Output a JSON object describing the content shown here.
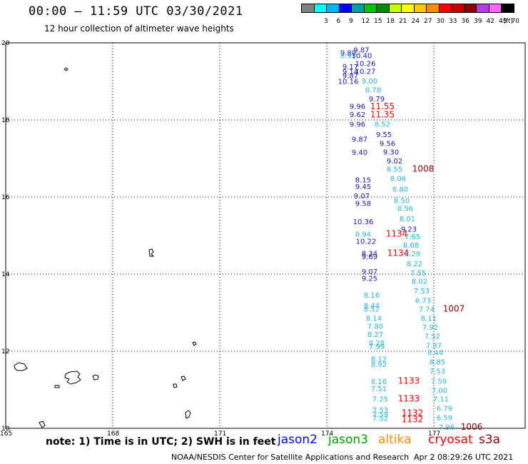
{
  "header": {
    "title": "00:00 – 11:59 UTC 03/30/2021",
    "subtitle": "12 hour collection of altimeter wave heights"
  },
  "legend": {
    "unit": "(ft)",
    "swatches": [
      {
        "label": "",
        "color": "#808080"
      },
      {
        "label": "3",
        "color": "#00ffff"
      },
      {
        "label": "6",
        "color": "#00b4ff"
      },
      {
        "label": "9",
        "color": "#0000ff"
      },
      {
        "label": "12",
        "color": "#00a0a0"
      },
      {
        "label": "15",
        "color": "#00c800"
      },
      {
        "label": "18",
        "color": "#008c00"
      },
      {
        "label": "21",
        "color": "#c8ff00"
      },
      {
        "label": "24",
        "color": "#ffff00"
      },
      {
        "label": "27",
        "color": "#ffc800"
      },
      {
        "label": "30",
        "color": "#ff8c00"
      },
      {
        "label": "33",
        "color": "#ff0000"
      },
      {
        "label": "36",
        "color": "#c80000"
      },
      {
        "label": "39",
        "color": "#8c0000"
      },
      {
        "label": "42",
        "color": "#b43ce6"
      },
      {
        "label": "45",
        "color": "#ff64ff"
      },
      {
        "label": "70",
        "color": "#000000"
      }
    ]
  },
  "map": {
    "lat_labels": [
      "20",
      "18",
      "16",
      "14",
      "12",
      "10"
    ],
    "lon_labels": [
      "165",
      "168",
      "171",
      "174",
      "177"
    ],
    "colors": {
      "navy": "#1a1ab4",
      "sky": "#2ab4dc",
      "red": "#ff0000",
      "maroon": "#8c0000"
    },
    "observations": [
      {
        "text": "9.87",
        "c": "navy",
        "lon": 174.97,
        "lat": 19.82
      },
      {
        "text": "9.80",
        "c": "navy",
        "lon": 174.6,
        "lat": 19.75
      },
      {
        "text": "8.95",
        "c": "sky",
        "lon": 174.6,
        "lat": 19.68
      },
      {
        "text": "10.40",
        "c": "navy",
        "lon": 174.98,
        "lat": 19.68
      },
      {
        "text": "10.26",
        "c": "navy",
        "lon": 175.08,
        "lat": 19.47
      },
      {
        "text": "9.17",
        "c": "navy",
        "lon": 174.66,
        "lat": 19.39
      },
      {
        "text": "10.27",
        "c": "navy",
        "lon": 175.08,
        "lat": 19.27
      },
      {
        "text": "9.14",
        "c": "navy",
        "lon": 174.66,
        "lat": 19.26
      },
      {
        "text": "9.87",
        "c": "navy",
        "lon": 174.66,
        "lat": 19.16
      },
      {
        "text": "9.00",
        "c": "sky",
        "lon": 175.2,
        "lat": 19.02
      },
      {
        "text": "10.16",
        "c": "navy",
        "lon": 174.6,
        "lat": 19.01
      },
      {
        "text": "8.78",
        "c": "sky",
        "lon": 175.3,
        "lat": 18.79
      },
      {
        "text": "9.79",
        "c": "navy",
        "lon": 175.4,
        "lat": 18.56
      },
      {
        "text": "9.96",
        "c": "navy",
        "lon": 174.86,
        "lat": 18.36
      },
      {
        "text": "11.55",
        "c": "red",
        "lon": 175.56,
        "lat": 18.35
      },
      {
        "text": "9.62",
        "c": "navy",
        "lon": 174.86,
        "lat": 18.15
      },
      {
        "text": "11.35",
        "c": "red",
        "lon": 175.56,
        "lat": 18.14
      },
      {
        "text": "9.96",
        "c": "navy",
        "lon": 174.86,
        "lat": 17.9
      },
      {
        "text": "8.52",
        "c": "sky",
        "lon": 175.56,
        "lat": 17.9
      },
      {
        "text": "9.55",
        "c": "navy",
        "lon": 175.6,
        "lat": 17.63
      },
      {
        "text": "9.87",
        "c": "navy",
        "lon": 174.92,
        "lat": 17.51
      },
      {
        "text": "9.56",
        "c": "navy",
        "lon": 175.7,
        "lat": 17.4
      },
      {
        "text": "9.40",
        "c": "navy",
        "lon": 174.92,
        "lat": 17.17
      },
      {
        "text": "9.30",
        "c": "navy",
        "lon": 175.8,
        "lat": 17.18
      },
      {
        "text": "9.02",
        "c": "navy",
        "lon": 175.9,
        "lat": 16.94
      },
      {
        "text": "8.55",
        "c": "sky",
        "lon": 175.9,
        "lat": 16.73
      },
      {
        "text": "1008",
        "c": "maroon",
        "lon": 176.7,
        "lat": 16.73
      },
      {
        "text": "8.06",
        "c": "sky",
        "lon": 176.0,
        "lat": 16.49
      },
      {
        "text": "8.15",
        "c": "navy",
        "lon": 175.02,
        "lat": 16.45
      },
      {
        "text": "9.45",
        "c": "navy",
        "lon": 175.02,
        "lat": 16.28
      },
      {
        "text": "8.80",
        "c": "sky",
        "lon": 176.06,
        "lat": 16.21
      },
      {
        "text": "9.07",
        "c": "navy",
        "lon": 174.98,
        "lat": 16.04
      },
      {
        "text": "8.50",
        "c": "sky",
        "lon": 176.1,
        "lat": 15.92
      },
      {
        "text": "9.58",
        "c": "navy",
        "lon": 175.02,
        "lat": 15.84
      },
      {
        "text": "8.56",
        "c": "sky",
        "lon": 176.2,
        "lat": 15.71
      },
      {
        "text": "8.01",
        "c": "sky",
        "lon": 176.26,
        "lat": 15.44
      },
      {
        "text": "10.36",
        "c": "navy",
        "lon": 175.02,
        "lat": 15.37
      },
      {
        "text": "9.23",
        "c": "navy",
        "lon": 176.3,
        "lat": 15.18
      },
      {
        "text": "8.94",
        "c": "sky",
        "lon": 175.02,
        "lat": 15.05
      },
      {
        "text": "1134",
        "c": "red",
        "lon": 175.96,
        "lat": 15.05
      },
      {
        "text": "7.65",
        "c": "sky",
        "lon": 176.4,
        "lat": 14.98
      },
      {
        "text": "10.22",
        "c": "navy",
        "lon": 175.1,
        "lat": 14.86
      },
      {
        "text": "8.68",
        "c": "sky",
        "lon": 176.36,
        "lat": 14.76
      },
      {
        "text": "8.34",
        "c": "navy",
        "lon": 175.2,
        "lat": 14.55
      },
      {
        "text": "1134",
        "c": "red",
        "lon": 176.0,
        "lat": 14.55
      },
      {
        "text": "8.29",
        "c": "sky",
        "lon": 176.4,
        "lat": 14.54
      },
      {
        "text": "9.69",
        "c": "navy",
        "lon": 175.2,
        "lat": 14.46
      },
      {
        "text": "8.22",
        "c": "sky",
        "lon": 176.46,
        "lat": 14.28
      },
      {
        "text": "9.07",
        "c": "navy",
        "lon": 175.2,
        "lat": 14.07
      },
      {
        "text": "7.55",
        "c": "sky",
        "lon": 176.56,
        "lat": 14.04
      },
      {
        "text": "9.25",
        "c": "navy",
        "lon": 175.2,
        "lat": 13.9
      },
      {
        "text": "8.02",
        "c": "sky",
        "lon": 176.6,
        "lat": 13.82
      },
      {
        "text": "7.53",
        "c": "sky",
        "lon": 176.66,
        "lat": 13.57
      },
      {
        "text": "8.16",
        "c": "sky",
        "lon": 175.26,
        "lat": 13.46
      },
      {
        "text": "6.73",
        "c": "sky",
        "lon": 176.7,
        "lat": 13.32
      },
      {
        "text": "8.44",
        "c": "sky",
        "lon": 175.26,
        "lat": 13.19
      },
      {
        "text": "8.52",
        "c": "sky",
        "lon": 175.26,
        "lat": 13.1
      },
      {
        "text": "7.74",
        "c": "sky",
        "lon": 176.8,
        "lat": 13.1
      },
      {
        "text": "1007",
        "c": "maroon",
        "lon": 177.56,
        "lat": 13.1
      },
      {
        "text": "8.14",
        "c": "sky",
        "lon": 175.32,
        "lat": 12.86
      },
      {
        "text": "8.11",
        "c": "sky",
        "lon": 176.86,
        "lat": 12.86
      },
      {
        "text": "7.80",
        "c": "sky",
        "lon": 175.36,
        "lat": 12.66
      },
      {
        "text": "7.92",
        "c": "sky",
        "lon": 176.9,
        "lat": 12.63
      },
      {
        "text": "8.27",
        "c": "sky",
        "lon": 175.36,
        "lat": 12.44
      },
      {
        "text": "7.52",
        "c": "sky",
        "lon": 176.96,
        "lat": 12.4
      },
      {
        "text": "8.28",
        "c": "sky",
        "lon": 175.4,
        "lat": 12.22
      },
      {
        "text": "7.87",
        "c": "sky",
        "lon": 177.0,
        "lat": 12.16
      },
      {
        "text": "7.99",
        "c": "sky",
        "lon": 175.4,
        "lat": 12.13
      },
      {
        "text": "8.44",
        "c": "sky",
        "lon": 177.04,
        "lat": 11.97
      },
      {
        "text": "8.12",
        "c": "sky",
        "lon": 175.46,
        "lat": 11.81
      },
      {
        "text": "8.85",
        "c": "sky",
        "lon": 177.1,
        "lat": 11.73
      },
      {
        "text": "8.92",
        "c": "sky",
        "lon": 175.46,
        "lat": 11.67
      },
      {
        "text": "7.53",
        "c": "sky",
        "lon": 177.1,
        "lat": 11.49
      },
      {
        "text": "8.16",
        "c": "sky",
        "lon": 175.46,
        "lat": 11.22
      },
      {
        "text": "7.59",
        "c": "sky",
        "lon": 177.14,
        "lat": 11.23
      },
      {
        "text": "1133",
        "c": "red",
        "lon": 176.3,
        "lat": 11.23
      },
      {
        "text": "7.51",
        "c": "sky",
        "lon": 175.46,
        "lat": 11.04
      },
      {
        "text": "7.00",
        "c": "sky",
        "lon": 177.16,
        "lat": 10.99
      },
      {
        "text": "7.25",
        "c": "sky",
        "lon": 175.5,
        "lat": 10.77
      },
      {
        "text": "1133",
        "c": "red",
        "lon": 176.3,
        "lat": 10.77
      },
      {
        "text": "7.11",
        "c": "sky",
        "lon": 177.2,
        "lat": 10.77
      },
      {
        "text": "6.79",
        "c": "sky",
        "lon": 177.3,
        "lat": 10.53
      },
      {
        "text": "7.53",
        "c": "sky",
        "lon": 175.5,
        "lat": 10.48
      },
      {
        "text": "1132",
        "c": "red",
        "lon": 176.4,
        "lat": 10.4
      },
      {
        "text": "7.59",
        "c": "sky",
        "lon": 175.5,
        "lat": 10.37
      },
      {
        "text": "7.52",
        "c": "sky",
        "lon": 175.5,
        "lat": 10.27
      },
      {
        "text": "1132",
        "c": "red",
        "lon": 176.4,
        "lat": 10.23
      },
      {
        "text": "6.59",
        "c": "sky",
        "lon": 177.3,
        "lat": 10.29
      },
      {
        "text": "7.96",
        "c": "sky",
        "lon": 177.36,
        "lat": 10.04
      },
      {
        "text": "1006",
        "c": "maroon",
        "lon": 178.06,
        "lat": 10.04
      }
    ]
  },
  "footer": {
    "note": "note: 1) Time is in UTC; 2) SWH is in feet",
    "satellites": [
      {
        "name": "jason2",
        "color": "#0000ff"
      },
      {
        "name": "jason3",
        "color": "#00a000"
      },
      {
        "name": "altika",
        "color": "#ff8c00"
      },
      {
        "name": "cryosat",
        "color": "#ff0000"
      },
      {
        "name": "s3a",
        "color": "#8c0000"
      }
    ],
    "credit": "NOAA/NESDIS Center for Satellite Applications and Research",
    "timestamp": "Apr  2 08:29:26 UTC 2021"
  }
}
